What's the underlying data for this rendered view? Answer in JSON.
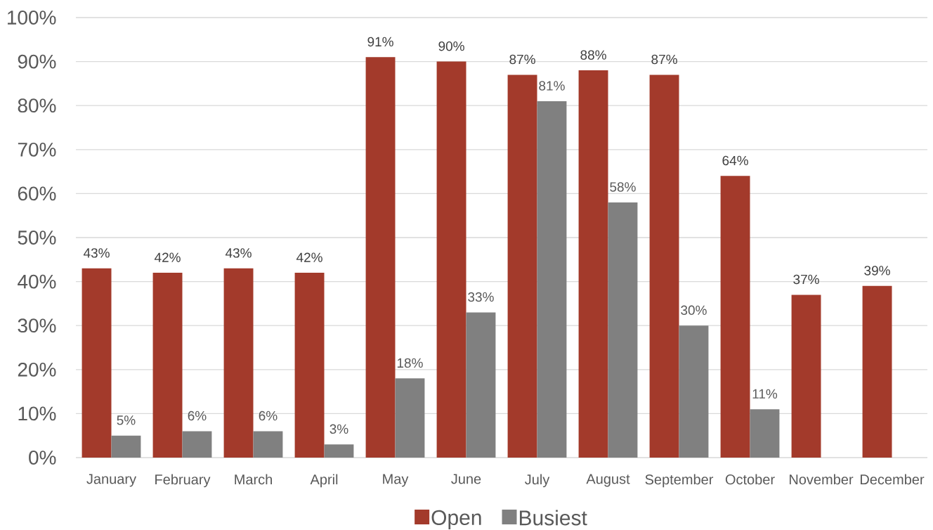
{
  "chart_data": {
    "type": "bar",
    "categories": [
      "January",
      "February",
      "March",
      "April",
      "May",
      "June",
      "July",
      "August",
      "September",
      "October",
      "November",
      "December"
    ],
    "series": [
      {
        "name": "Open",
        "color": "#a33a2b",
        "values": [
          43,
          42,
          43,
          42,
          91,
          90,
          87,
          88,
          87,
          64,
          37,
          39
        ],
        "value_labels": [
          "43%",
          "42%",
          "43%",
          "42%",
          "91%",
          "90%",
          "87%",
          "88%",
          "87%",
          "64%",
          "37%",
          "39%"
        ]
      },
      {
        "name": "Busiest",
        "color": "#808080",
        "values": [
          5,
          6,
          6,
          3,
          18,
          33,
          81,
          58,
          30,
          11,
          null,
          null
        ],
        "value_labels": [
          "5%",
          "6%",
          "6%",
          "3%",
          "18%",
          "33%",
          "81%",
          "58%",
          "30%",
          "11%",
          null,
          null
        ]
      }
    ],
    "ylim": [
      0,
      100
    ],
    "yticks": [
      {
        "value": 0,
        "label": "0%"
      },
      {
        "value": 10,
        "label": "10%"
      },
      {
        "value": 20,
        "label": "20%"
      },
      {
        "value": 30,
        "label": "30%"
      },
      {
        "value": 40,
        "label": "40%"
      },
      {
        "value": 50,
        "label": "50%"
      },
      {
        "value": 60,
        "label": "60%"
      },
      {
        "value": 70,
        "label": "70%"
      },
      {
        "value": 80,
        "label": "80%"
      },
      {
        "value": 90,
        "label": "90%"
      },
      {
        "value": 100,
        "label": "100%"
      }
    ],
    "grid": "y",
    "legend": "bottom"
  }
}
